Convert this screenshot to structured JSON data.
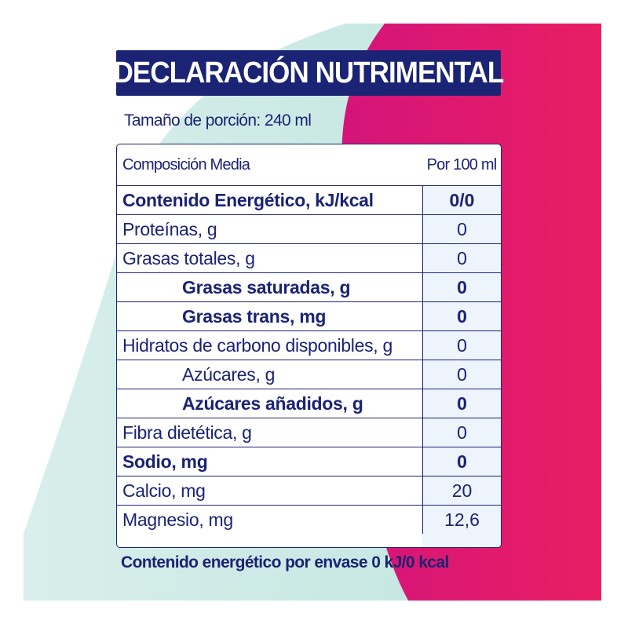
{
  "title": "DECLARACIÓN NUTRIMENTAL",
  "serving_size": "Tamaño de porción: 240 ml",
  "table": {
    "header": {
      "label": "Composición Media",
      "value": "Por 100 ml"
    },
    "rows": [
      {
        "label": "Contenido Energético, kJ/kcal",
        "value": "0/0",
        "bold": true,
        "indent": false
      },
      {
        "label": "Proteínas, g",
        "value": "0",
        "bold": false,
        "indent": false
      },
      {
        "label": "Grasas totales, g",
        "value": "0",
        "bold": false,
        "indent": false
      },
      {
        "label": "Grasas saturadas, g",
        "value": "0",
        "bold": true,
        "indent": true
      },
      {
        "label": "Grasas trans, mg",
        "value": "0",
        "bold": true,
        "indent": true
      },
      {
        "label": "Hidratos de carbono disponibles, g",
        "value": "0",
        "bold": false,
        "indent": false
      },
      {
        "label": "Azúcares, g",
        "value": "0",
        "bold": false,
        "indent": true
      },
      {
        "label": "Azúcares añadidos, g",
        "value": "0",
        "bold": true,
        "indent": true
      },
      {
        "label": "Fibra dietética, g",
        "value": "0",
        "bold": false,
        "indent": false
      },
      {
        "label": "Sodio, mg",
        "value": "0",
        "bold": true,
        "indent": false
      },
      {
        "label": "Calcio, mg",
        "value": "20",
        "bold": false,
        "indent": false
      },
      {
        "label": "Magnesio, mg",
        "value": "12,6",
        "bold": false,
        "indent": false
      }
    ]
  },
  "footer": "Contenido energético por envase 0 kJ/0 kcal",
  "colors": {
    "navy": "#1b2374",
    "magenta": "#e6176f",
    "mint": "#cfeae6",
    "value_column": "#edf4fb"
  }
}
